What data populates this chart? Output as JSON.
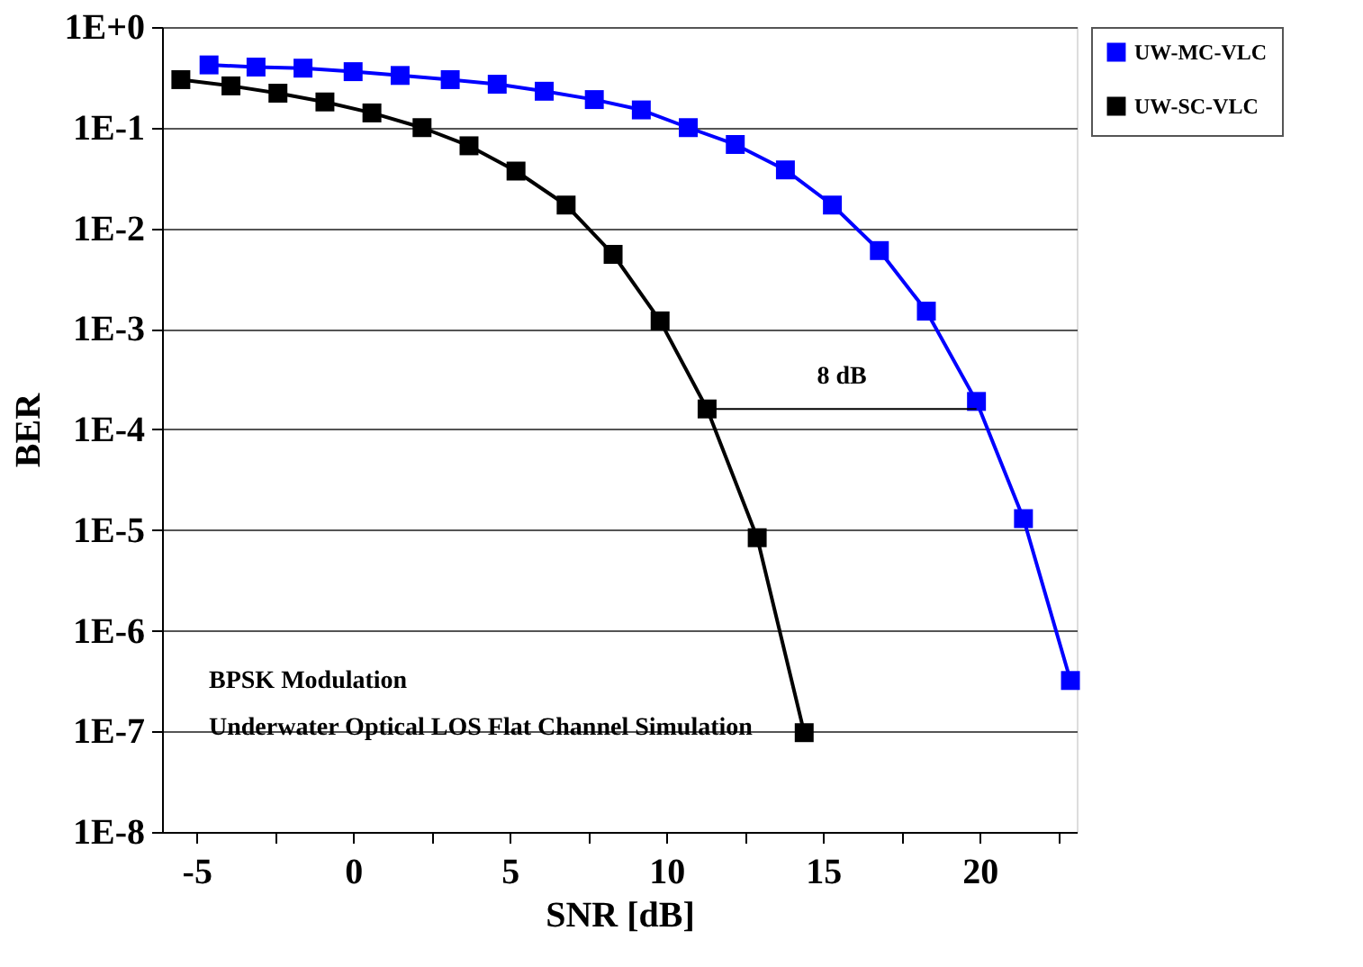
{
  "chart_data": {
    "type": "line",
    "xlabel": "SNR [dB]",
    "ylabel": "BER",
    "xlim": [
      -6.1,
      23.1
    ],
    "xticks": [
      -5,
      {
        "value": -2.5,
        "label": null
      },
      0,
      {
        "value": 2.5,
        "label": null
      },
      5,
      {
        "value": 7.5,
        "label": null
      },
      10,
      {
        "value": 12.5,
        "label": null
      },
      15,
      {
        "value": 17.5,
        "label": null
      },
      20,
      {
        "value": 22.5,
        "label": null
      }
    ],
    "ylim": [
      1e-08,
      1
    ],
    "log": "y",
    "yticks": [
      {
        "value": 1,
        "label": "1E+0"
      },
      {
        "value": 0.1,
        "label": "1E-1"
      },
      {
        "value": 0.01,
        "label": "1E-2"
      },
      {
        "value": 0.001,
        "label": "1E-3"
      },
      {
        "value": 0.0001,
        "label": "1E-4"
      },
      {
        "value": 1e-05,
        "label": "1E-5"
      },
      {
        "value": 1e-06,
        "label": "1E-6"
      },
      {
        "value": 1e-07,
        "label": "1E-7"
      },
      {
        "value": 1e-08,
        "label": "1E-8"
      }
    ],
    "grid": "y",
    "legend": "top right",
    "marker": "square",
    "line_style": "solid",
    "series": [
      {
        "name": "UW-MC-VLC",
        "color": "#0000ff",
        "x": [
          -4.6,
          -3.1,
          -1.6,
          0.0,
          1.5,
          3.1,
          4.6,
          6.1,
          7.7,
          9.2,
          10.7,
          12.2,
          13.8,
          15.3,
          16.8,
          18.3,
          19.9,
          21.4,
          22.9
        ],
        "values": [
          0.42,
          0.4,
          0.39,
          0.36,
          0.33,
          0.3,
          0.27,
          0.23,
          0.19,
          0.15,
          0.1,
          0.068,
          0.038,
          0.017,
          0.006,
          0.0015,
          0.00019,
          1.3e-05,
          3.2e-07
        ]
      },
      {
        "name": "UW-SC-VLC",
        "color": "#000000",
        "x": [
          -5.5,
          -3.9,
          -2.4,
          -0.9,
          0.6,
          2.2,
          3.7,
          5.2,
          6.8,
          8.3,
          9.8,
          11.3,
          12.9,
          14.4
        ],
        "values": [
          0.3,
          0.26,
          0.22,
          0.18,
          0.14,
          0.1,
          0.066,
          0.037,
          0.017,
          0.0055,
          0.0012,
          0.00016,
          8.4e-06,
          9.7e-08
        ]
      },
      {
        "type": "line",
        "marker": "none",
        "color": "#000000",
        "x": [
          11.3,
          19.9
        ],
        "values": [
          0.00016,
          0.00016
        ]
      }
    ],
    "annotations": [
      {
        "text": "8 dB",
        "x": 15.6,
        "y": 0.00016
      },
      "BPSK Modulation",
      "Underwater Optical LOS Flat Channel Simulation"
    ]
  }
}
